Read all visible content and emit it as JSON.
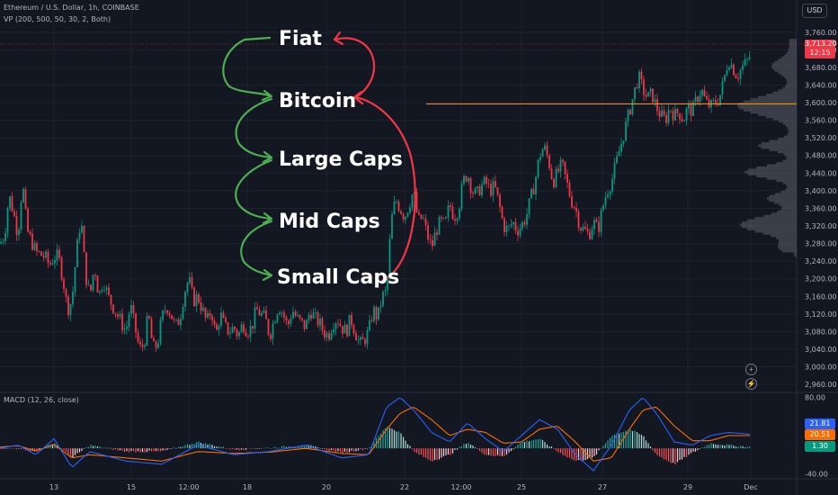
{
  "header": {
    "symbol_line": "Ethereum / U.S. Dollar, 1h, COINBASE",
    "vp_line": "VP (200, 500, 50, 30, 2, Both)",
    "macd_line": "MACD (12, 26, close)",
    "currency": "USD"
  },
  "price_badge": {
    "price": "3,713.20",
    "countdown": "12:15",
    "color": "#f23645"
  },
  "macd_badges": [
    {
      "value": "21.81",
      "color": "#2962ff"
    },
    {
      "value": "20.51",
      "color": "#ff6d00"
    },
    {
      "value": "1.30",
      "color": "#089981"
    }
  ],
  "annotations": [
    {
      "label": "Fiat"
    },
    {
      "label": "Bitcoin"
    },
    {
      "label": "Large Caps"
    },
    {
      "label": "Mid Caps"
    },
    {
      "label": "Small Caps"
    }
  ],
  "colors": {
    "up": "#089981",
    "down": "#f23645",
    "hline": "#ff9800",
    "green_arrow": "#4caf50",
    "red_arrow": "#f23645",
    "macd_line": "#2962ff",
    "signal_line": "#ff6d00"
  },
  "chart_data": {
    "type": "candlestick",
    "title": "Ethereum / U.S. Dollar, 1h, COINBASE",
    "price_axis": {
      "ticks": [
        "3,760.00",
        "3,720.00",
        "3,680.00",
        "3,640.00",
        "3,600.00",
        "3,560.00",
        "3,520.00",
        "3,480.00",
        "3,440.00",
        "3,400.00",
        "3,360.00",
        "3,320.00",
        "3,280.00",
        "3,240.00",
        "3,200.00",
        "3,160.00",
        "3,120.00",
        "3,080.00",
        "3,040.00",
        "3,000.00",
        "2,960.00"
      ],
      "range": [
        2950,
        3780
      ]
    },
    "time_axis": {
      "ticks": [
        "13",
        "15",
        "12:00",
        "18",
        "20",
        "22",
        "12:00",
        "25",
        "27",
        "29",
        "Dec"
      ]
    },
    "horizontal_level": 3597,
    "price_path": [
      [
        0,
        3280
      ],
      [
        5,
        3300
      ],
      [
        10,
        3390
      ],
      [
        15,
        3350
      ],
      [
        20,
        3300
      ],
      [
        25,
        3420
      ],
      [
        30,
        3310
      ],
      [
        40,
        3260
      ],
      [
        50,
        3250
      ],
      [
        55,
        3230
      ],
      [
        60,
        3250
      ],
      [
        65,
        3250
      ],
      [
        70,
        3200
      ],
      [
        75,
        3130
      ],
      [
        80,
        3150
      ],
      [
        85,
        3260
      ],
      [
        90,
        3340
      ],
      [
        95,
        3210
      ],
      [
        100,
        3160
      ],
      [
        105,
        3230
      ],
      [
        110,
        3160
      ],
      [
        115,
        3200
      ],
      [
        120,
        3160
      ],
      [
        125,
        3140
      ],
      [
        130,
        3120
      ],
      [
        135,
        3100
      ],
      [
        140,
        3080
      ],
      [
        145,
        3140
      ],
      [
        150,
        3090
      ],
      [
        155,
        3040
      ],
      [
        160,
        3050
      ],
      [
        165,
        3120
      ],
      [
        170,
        3040
      ],
      [
        175,
        3050
      ],
      [
        180,
        3110
      ],
      [
        185,
        3140
      ],
      [
        190,
        3120
      ],
      [
        195,
        3090
      ],
      [
        200,
        3110
      ],
      [
        205,
        3170
      ],
      [
        210,
        3200
      ],
      [
        215,
        3150
      ],
      [
        220,
        3160
      ],
      [
        225,
        3130
      ],
      [
        230,
        3100
      ],
      [
        235,
        3130
      ],
      [
        240,
        3070
      ],
      [
        245,
        3120
      ],
      [
        250,
        3090
      ],
      [
        255,
        3080
      ],
      [
        260,
        3090
      ],
      [
        265,
        3070
      ],
      [
        270,
        3100
      ],
      [
        275,
        3080
      ],
      [
        280,
        3090
      ],
      [
        285,
        3130
      ],
      [
        290,
        3120
      ],
      [
        295,
        3110
      ],
      [
        300,
        3070
      ],
      [
        305,
        3110
      ],
      [
        310,
        3140
      ],
      [
        315,
        3120
      ],
      [
        320,
        3090
      ],
      [
        325,
        3130
      ],
      [
        330,
        3110
      ],
      [
        335,
        3100
      ],
      [
        340,
        3090
      ],
      [
        345,
        3130
      ],
      [
        350,
        3110
      ],
      [
        355,
        3100
      ],
      [
        360,
        3080
      ],
      [
        365,
        3070
      ],
      [
        370,
        3100
      ],
      [
        375,
        3110
      ],
      [
        380,
        3090
      ],
      [
        385,
        3080
      ],
      [
        390,
        3110
      ],
      [
        395,
        3080
      ],
      [
        400,
        3050
      ],
      [
        405,
        3060
      ],
      [
        410,
        3080
      ],
      [
        415,
        3130
      ],
      [
        420,
        3110
      ],
      [
        425,
        3160
      ],
      [
        430,
        3170
      ],
      [
        435,
        3330
      ],
      [
        440,
        3380
      ],
      [
        445,
        3360
      ],
      [
        450,
        3340
      ],
      [
        455,
        3370
      ],
      [
        460,
        3400
      ],
      [
        465,
        3330
      ],
      [
        470,
        3340
      ],
      [
        475,
        3300
      ],
      [
        480,
        3270
      ],
      [
        485,
        3310
      ],
      [
        490,
        3330
      ],
      [
        495,
        3320
      ],
      [
        500,
        3370
      ],
      [
        505,
        3340
      ],
      [
        510,
        3360
      ],
      [
        515,
        3420
      ],
      [
        520,
        3440
      ],
      [
        525,
        3400
      ],
      [
        530,
        3390
      ],
      [
        535,
        3410
      ],
      [
        540,
        3420
      ],
      [
        545,
        3400
      ],
      [
        550,
        3410
      ],
      [
        555,
        3370
      ],
      [
        560,
        3320
      ],
      [
        565,
        3310
      ],
      [
        570,
        3330
      ],
      [
        575,
        3310
      ],
      [
        580,
        3320
      ],
      [
        585,
        3340
      ],
      [
        590,
        3380
      ],
      [
        595,
        3420
      ],
      [
        600,
        3480
      ],
      [
        605,
        3500
      ],
      [
        610,
        3470
      ],
      [
        615,
        3420
      ],
      [
        620,
        3440
      ],
      [
        625,
        3460
      ],
      [
        630,
        3420
      ],
      [
        635,
        3380
      ],
      [
        640,
        3360
      ],
      [
        645,
        3320
      ],
      [
        650,
        3310
      ],
      [
        655,
        3300
      ],
      [
        660,
        3330
      ],
      [
        665,
        3310
      ],
      [
        670,
        3360
      ],
      [
        675,
        3400
      ],
      [
        680,
        3420
      ],
      [
        685,
        3460
      ],
      [
        690,
        3500
      ],
      [
        695,
        3540
      ],
      [
        700,
        3580
      ],
      [
        705,
        3620
      ],
      [
        710,
        3660
      ],
      [
        715,
        3630
      ],
      [
        720,
        3610
      ],
      [
        725,
        3620
      ],
      [
        730,
        3590
      ],
      [
        735,
        3570
      ],
      [
        740,
        3560
      ],
      [
        745,
        3590
      ],
      [
        750,
        3570
      ],
      [
        755,
        3580
      ],
      [
        760,
        3560
      ],
      [
        765,
        3590
      ],
      [
        770,
        3580
      ],
      [
        775,
        3610
      ],
      [
        780,
        3630
      ],
      [
        785,
        3600
      ],
      [
        790,
        3590
      ],
      [
        795,
        3600
      ],
      [
        800,
        3610
      ],
      [
        805,
        3650
      ],
      [
        810,
        3700
      ],
      [
        815,
        3680
      ],
      [
        820,
        3660
      ],
      [
        825,
        3680
      ],
      [
        830,
        3690
      ],
      [
        835,
        3710
      ]
    ],
    "macd": {
      "range": [
        -45,
        85
      ],
      "ticks": [
        "80.00",
        "-40.00"
      ],
      "macd_path": [
        [
          0,
          0
        ],
        [
          20,
          5
        ],
        [
          40,
          -10
        ],
        [
          60,
          15
        ],
        [
          80,
          -30
        ],
        [
          100,
          -5
        ],
        [
          140,
          -20
        ],
        [
          180,
          -25
        ],
        [
          220,
          5
        ],
        [
          260,
          -10
        ],
        [
          300,
          -5
        ],
        [
          340,
          5
        ],
        [
          380,
          -15
        ],
        [
          410,
          -10
        ],
        [
          430,
          65
        ],
        [
          445,
          80
        ],
        [
          460,
          60
        ],
        [
          480,
          25
        ],
        [
          500,
          10
        ],
        [
          520,
          40
        ],
        [
          540,
          15
        ],
        [
          560,
          -5
        ],
        [
          580,
          20
        ],
        [
          600,
          45
        ],
        [
          620,
          30
        ],
        [
          640,
          -10
        ],
        [
          660,
          -35
        ],
        [
          680,
          5
        ],
        [
          700,
          60
        ],
        [
          715,
          80
        ],
        [
          730,
          55
        ],
        [
          750,
          10
        ],
        [
          770,
          5
        ],
        [
          790,
          20
        ],
        [
          810,
          25
        ],
        [
          835,
          22
        ]
      ],
      "signal_path": [
        [
          0,
          2
        ],
        [
          20,
          4
        ],
        [
          40,
          -4
        ],
        [
          60,
          6
        ],
        [
          80,
          -15
        ],
        [
          100,
          -10
        ],
        [
          140,
          -15
        ],
        [
          180,
          -20
        ],
        [
          220,
          -5
        ],
        [
          260,
          -8
        ],
        [
          300,
          -6
        ],
        [
          340,
          0
        ],
        [
          380,
          -8
        ],
        [
          410,
          -10
        ],
        [
          430,
          30
        ],
        [
          445,
          55
        ],
        [
          460,
          65
        ],
        [
          480,
          45
        ],
        [
          500,
          20
        ],
        [
          520,
          30
        ],
        [
          540,
          25
        ],
        [
          560,
          8
        ],
        [
          580,
          10
        ],
        [
          600,
          30
        ],
        [
          620,
          35
        ],
        [
          640,
          10
        ],
        [
          660,
          -20
        ],
        [
          680,
          -15
        ],
        [
          700,
          30
        ],
        [
          715,
          60
        ],
        [
          730,
          65
        ],
        [
          750,
          35
        ],
        [
          770,
          12
        ],
        [
          790,
          12
        ],
        [
          810,
          20
        ],
        [
          835,
          20
        ]
      ]
    }
  }
}
